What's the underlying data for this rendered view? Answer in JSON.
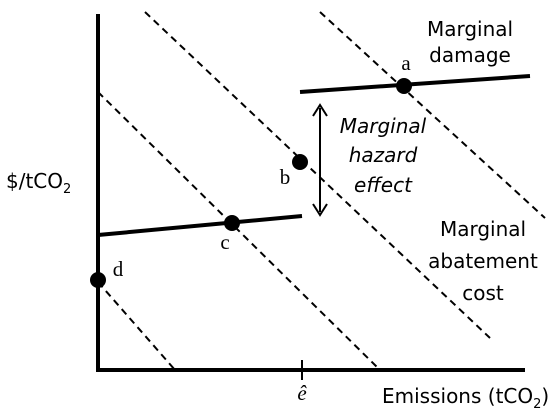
{
  "y_axis_label": {
    "text": "$/tCO",
    "sub": "2"
  },
  "x_axis_label": {
    "text": "Emissions (tCO",
    "sub": "2",
    "end": ")"
  },
  "x_tick_label": "ê",
  "points": [
    "a",
    "b",
    "c",
    "d"
  ],
  "curve_labels": {
    "marginal_damage": [
      "Marginal",
      "damage"
    ],
    "marginal_hazard_effect": [
      "Marginal",
      "hazard",
      "effect"
    ],
    "marginal_abatement_cost": [
      "Marginal",
      "abatement",
      "cost"
    ]
  }
}
